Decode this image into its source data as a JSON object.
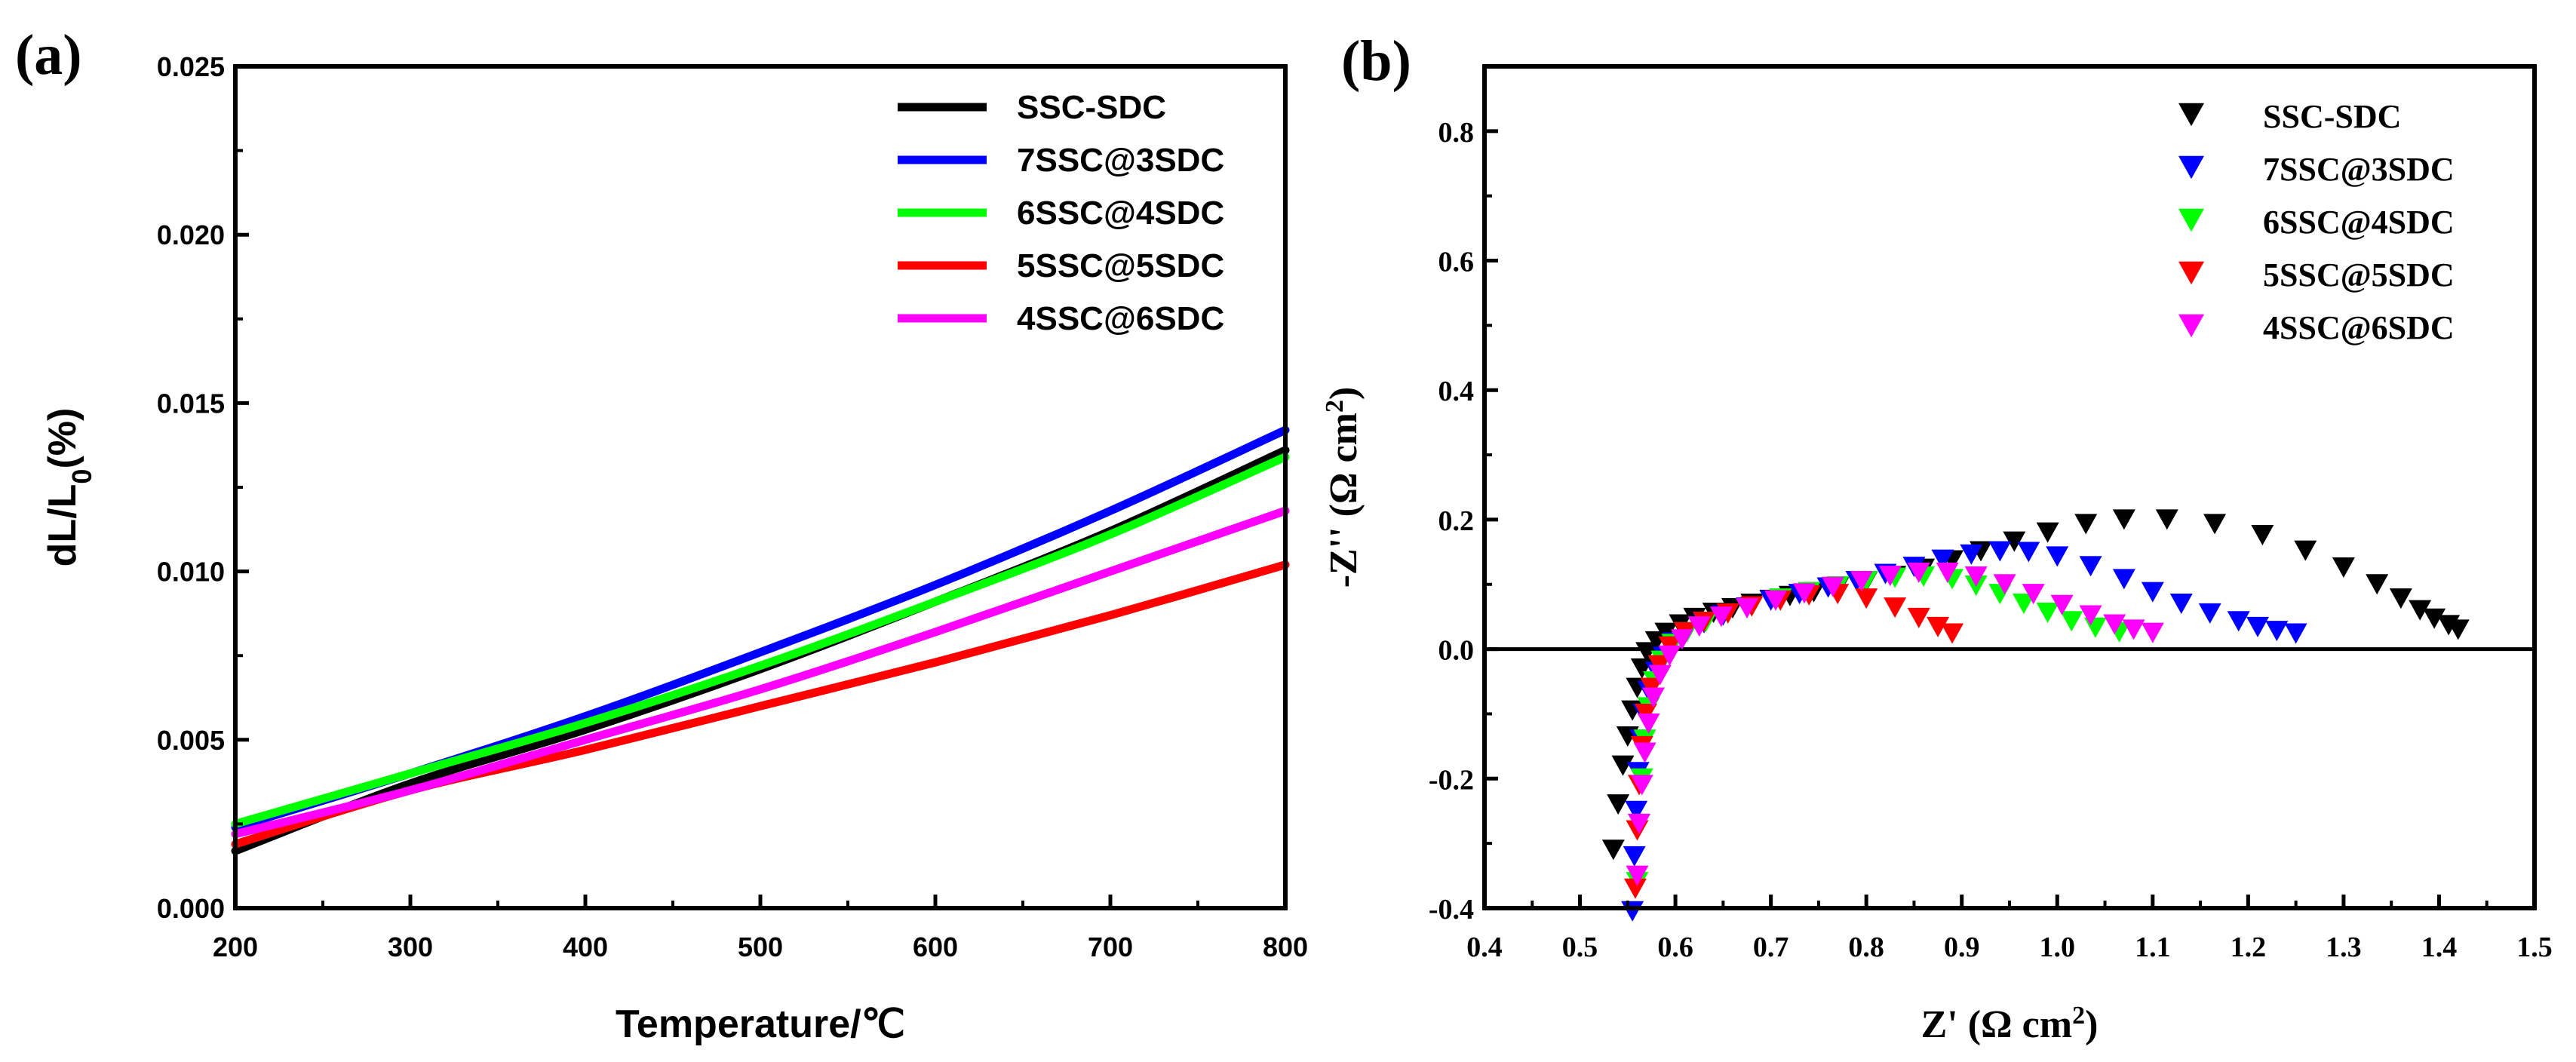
{
  "chart_data": [
    {
      "type": "line",
      "panel_label": "(a)",
      "xlabel": "Temperature/℃",
      "ylabel_parts": [
        "dL/L",
        "0",
        "(%)"
      ],
      "xlim": [
        200,
        800
      ],
      "ylim": [
        0,
        0.025
      ],
      "xticks": [
        "200",
        "300",
        "400",
        "500",
        "600",
        "700",
        "800"
      ],
      "yticks": [
        "0.000",
        "0.005",
        "0.010",
        "0.015",
        "0.020",
        "0.025"
      ],
      "legend_position": "top-right",
      "x": [
        200,
        300,
        400,
        500,
        600,
        700,
        800
      ],
      "series": [
        {
          "name": "SSC-SDC",
          "color": "#000000",
          "values": [
            0.0017,
            0.0037,
            0.0053,
            0.0071,
            0.0091,
            0.0112,
            0.0136
          ]
        },
        {
          "name": "7SSC@3SDC",
          "color": "#0000ff",
          "values": [
            0.0024,
            0.004,
            0.0057,
            0.0076,
            0.0096,
            0.0118,
            0.0142
          ]
        },
        {
          "name": "6SSC@4SDC",
          "color": "#00ff00",
          "values": [
            0.0025,
            0.004,
            0.0055,
            0.0072,
            0.0091,
            0.0111,
            0.0134
          ]
        },
        {
          "name": "5SSC@5SDC",
          "color": "#ff0000",
          "values": [
            0.0019,
            0.0035,
            0.0047,
            0.006,
            0.0073,
            0.0087,
            0.0102
          ]
        },
        {
          "name": "4SSC@6SDC",
          "color": "#ff00ff",
          "values": [
            0.0022,
            0.0035,
            0.005,
            0.0065,
            0.0082,
            0.01,
            0.0118
          ]
        }
      ]
    },
    {
      "type": "scatter",
      "panel_label": "(b)",
      "xlabel_parts": [
        "Z' (Ω cm",
        "2",
        ")"
      ],
      "ylabel_parts": [
        "-Z'' (Ω cm",
        "2",
        ")"
      ],
      "xlim": [
        0.4,
        1.5
      ],
      "ylim": [
        -0.4,
        0.9
      ],
      "xticks": [
        "0.4",
        "0.5",
        "0.6",
        "0.7",
        "0.8",
        "0.9",
        "1.0",
        "1.1",
        "1.2",
        "1.3",
        "1.4",
        "1.5"
      ],
      "yticks": [
        "-0.4",
        "-0.2",
        "0.0",
        "0.2",
        "0.4",
        "0.6",
        "0.8"
      ],
      "zero_line": 0,
      "legend_position": "top-right",
      "marker": "triangle-down",
      "series": [
        {
          "name": "SSC-SDC",
          "color": "#000000",
          "points": [
            [
              0.535,
              -0.31
            ],
            [
              0.54,
              -0.24
            ],
            [
              0.545,
              -0.18
            ],
            [
              0.55,
              -0.135
            ],
            [
              0.555,
              -0.095
            ],
            [
              0.56,
              -0.06
            ],
            [
              0.565,
              -0.03
            ],
            [
              0.57,
              -0.005
            ],
            [
              0.58,
              0.012
            ],
            [
              0.59,
              0.025
            ],
            [
              0.605,
              0.038
            ],
            [
              0.62,
              0.048
            ],
            [
              0.64,
              0.056
            ],
            [
              0.66,
              0.063
            ],
            [
              0.68,
              0.07
            ],
            [
              0.7,
              0.076
            ],
            [
              0.72,
              0.082
            ],
            [
              0.745,
              0.088
            ],
            [
              0.77,
              0.095
            ],
            [
              0.8,
              0.104
            ],
            [
              0.83,
              0.113
            ],
            [
              0.86,
              0.124
            ],
            [
              0.89,
              0.137
            ],
            [
              0.92,
              0.151
            ],
            [
              0.955,
              0.166
            ],
            [
              0.99,
              0.18
            ],
            [
              1.03,
              0.193
            ],
            [
              1.07,
              0.2
            ],
            [
              1.115,
              0.2
            ],
            [
              1.165,
              0.193
            ],
            [
              1.215,
              0.176
            ],
            [
              1.26,
              0.152
            ],
            [
              1.3,
              0.126
            ],
            [
              1.335,
              0.1
            ],
            [
              1.36,
              0.078
            ],
            [
              1.38,
              0.06
            ],
            [
              1.395,
              0.047
            ],
            [
              1.41,
              0.037
            ],
            [
              1.42,
              0.03
            ]
          ]
        },
        {
          "name": "7SSC@3SDC",
          "color": "#0000ff",
          "points": [
            [
              0.555,
              -0.405
            ],
            [
              0.557,
              -0.32
            ],
            [
              0.559,
              -0.25
            ],
            [
              0.561,
              -0.19
            ],
            [
              0.564,
              -0.14
            ],
            [
              0.567,
              -0.1
            ],
            [
              0.572,
              -0.065
            ],
            [
              0.58,
              -0.035
            ],
            [
              0.588,
              -0.012
            ],
            [
              0.598,
              0.01
            ],
            [
              0.612,
              0.026
            ],
            [
              0.63,
              0.04
            ],
            [
              0.65,
              0.052
            ],
            [
              0.675,
              0.064
            ],
            [
              0.7,
              0.075
            ],
            [
              0.73,
              0.085
            ],
            [
              0.76,
              0.095
            ],
            [
              0.79,
              0.105
            ],
            [
              0.82,
              0.116
            ],
            [
              0.85,
              0.127
            ],
            [
              0.88,
              0.138
            ],
            [
              0.91,
              0.146
            ],
            [
              0.94,
              0.151
            ],
            [
              0.97,
              0.15
            ],
            [
              1.0,
              0.143
            ],
            [
              1.035,
              0.128
            ],
            [
              1.07,
              0.108
            ],
            [
              1.1,
              0.088
            ],
            [
              1.13,
              0.07
            ],
            [
              1.16,
              0.055
            ],
            [
              1.19,
              0.043
            ],
            [
              1.21,
              0.034
            ],
            [
              1.23,
              0.028
            ],
            [
              1.25,
              0.024
            ]
          ]
        },
        {
          "name": "6SSC@4SDC",
          "color": "#00ff00",
          "points": [
            [
              0.56,
              -0.36
            ],
            [
              0.562,
              -0.27
            ],
            [
              0.565,
              -0.2
            ],
            [
              0.568,
              -0.14
            ],
            [
              0.572,
              -0.09
            ],
            [
              0.578,
              -0.05
            ],
            [
              0.586,
              -0.018
            ],
            [
              0.597,
              0.008
            ],
            [
              0.612,
              0.026
            ],
            [
              0.632,
              0.042
            ],
            [
              0.655,
              0.055
            ],
            [
              0.68,
              0.066
            ],
            [
              0.71,
              0.078
            ],
            [
              0.74,
              0.088
            ],
            [
              0.77,
              0.097
            ],
            [
              0.8,
              0.105
            ],
            [
              0.83,
              0.11
            ],
            [
              0.86,
              0.112
            ],
            [
              0.89,
              0.108
            ],
            [
              0.915,
              0.098
            ],
            [
              0.94,
              0.085
            ],
            [
              0.965,
              0.07
            ],
            [
              0.99,
              0.056
            ],
            [
              1.015,
              0.043
            ],
            [
              1.04,
              0.033
            ],
            [
              1.065,
              0.026
            ]
          ]
        },
        {
          "name": "5SSC@5SDC",
          "color": "#ff0000",
          "points": [
            [
              0.558,
              -0.37
            ],
            [
              0.56,
              -0.28
            ],
            [
              0.562,
              -0.21
            ],
            [
              0.565,
              -0.15
            ],
            [
              0.569,
              -0.1
            ],
            [
              0.575,
              -0.06
            ],
            [
              0.583,
              -0.025
            ],
            [
              0.594,
              0.004
            ],
            [
              0.61,
              0.026
            ],
            [
              0.63,
              0.042
            ],
            [
              0.655,
              0.055
            ],
            [
              0.68,
              0.066
            ],
            [
              0.71,
              0.075
            ],
            [
              0.74,
              0.083
            ],
            [
              0.77,
              0.085
            ],
            [
              0.8,
              0.078
            ],
            [
              0.83,
              0.064
            ],
            [
              0.855,
              0.048
            ],
            [
              0.875,
              0.034
            ],
            [
              0.89,
              0.024
            ]
          ]
        },
        {
          "name": "4SSC@6SDC",
          "color": "#ff00ff",
          "points": [
            [
              0.56,
              -0.35
            ],
            [
              0.562,
              -0.27
            ],
            [
              0.565,
              -0.21
            ],
            [
              0.568,
              -0.16
            ],
            [
              0.572,
              -0.115
            ],
            [
              0.577,
              -0.075
            ],
            [
              0.584,
              -0.04
            ],
            [
              0.594,
              -0.01
            ],
            [
              0.607,
              0.015
            ],
            [
              0.625,
              0.035
            ],
            [
              0.648,
              0.05
            ],
            [
              0.675,
              0.063
            ],
            [
              0.705,
              0.075
            ],
            [
              0.735,
              0.086
            ],
            [
              0.765,
              0.096
            ],
            [
              0.795,
              0.105
            ],
            [
              0.825,
              0.113
            ],
            [
              0.855,
              0.118
            ],
            [
              0.885,
              0.118
            ],
            [
              0.915,
              0.112
            ],
            [
              0.945,
              0.1
            ],
            [
              0.975,
              0.085
            ],
            [
              1.005,
              0.068
            ],
            [
              1.035,
              0.052
            ],
            [
              1.06,
              0.038
            ],
            [
              1.08,
              0.03
            ],
            [
              1.1,
              0.025
            ]
          ]
        }
      ]
    }
  ]
}
